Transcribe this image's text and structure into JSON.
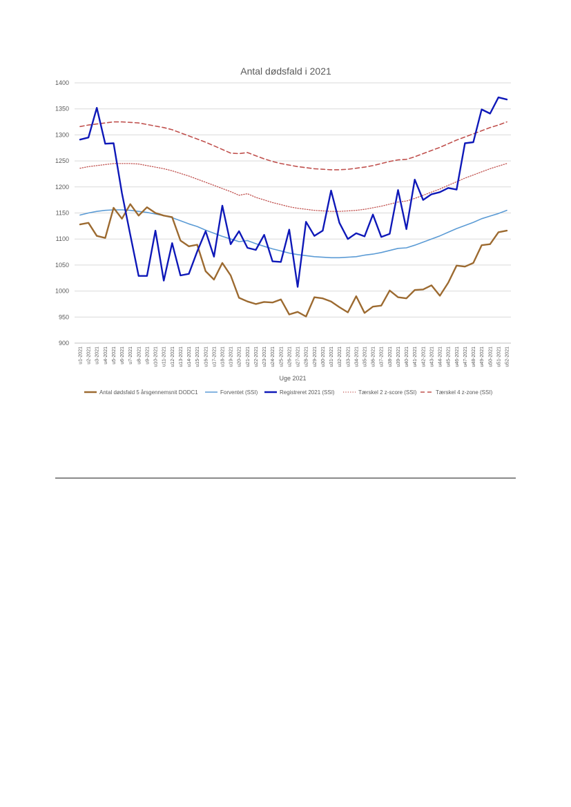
{
  "page": {},
  "chart_data": {
    "type": "line",
    "title": "Antal dødsfald i 2021",
    "xlabel": "Uge 2021",
    "ylabel": "",
    "ylim": [
      900,
      1400
    ],
    "yticks": [
      900,
      950,
      1000,
      1050,
      1100,
      1150,
      1200,
      1250,
      1300,
      1350,
      1400
    ],
    "grid": true,
    "legend_position": "bottom",
    "categories": [
      "u1-2021",
      "u2-2021",
      "u3-2021",
      "u4-2021",
      "u5-2021",
      "u6-2021",
      "u7-2021",
      "u8-2021",
      "u9-2021",
      "u10-2021",
      "u11-2021",
      "u12-2021",
      "u13-2021",
      "u14-2021",
      "u15-2021",
      "u16-2021",
      "u17-2021",
      "u18-2021",
      "u19-2021",
      "u20-2021",
      "u21-2021",
      "u22-2021",
      "u23-2021",
      "u24-2021",
      "u25-2021",
      "u26-2021",
      "u27-2021",
      "u28-2021",
      "u29-2021",
      "u30-2021",
      "u31-2021",
      "u32-2021",
      "u33-2021",
      "u34-2021",
      "u35-2021",
      "u36-2021",
      "u37-2021",
      "u38-2021",
      "u39-2021",
      "u40-2021",
      "u41-2021",
      "u42-2021",
      "u43-2021",
      "u44-2021",
      "u45-2021",
      "u46-2021",
      "u47-2021",
      "u48-2021",
      "u49-2021",
      "u50-2021",
      "u51-2021",
      "u52-2021"
    ],
    "series": [
      {
        "name": "Antal dødsfald 5 årsgennemsnit DODC1",
        "color": "#9c6a30",
        "style": "solid-thick",
        "values": [
          1128,
          1131,
          1106,
          1102,
          1160,
          1139,
          1167,
          1145,
          1161,
          1150,
          1145,
          1142,
          1097,
          1086,
          1089,
          1038,
          1022,
          1054,
          1030,
          987,
          980,
          975,
          979,
          978,
          984,
          955,
          960,
          951,
          988,
          986,
          980,
          969,
          959,
          990,
          958,
          970,
          972,
          1001,
          988,
          986,
          1002,
          1003,
          1011,
          991,
          1016,
          1049,
          1047,
          1054,
          1088,
          1090,
          1113,
          1116
        ]
      },
      {
        "name": "Forventet (SSI)",
        "color": "#5b9bd5",
        "style": "solid",
        "values": [
          1146,
          1150,
          1153,
          1155,
          1156,
          1156,
          1155,
          1153,
          1151,
          1148,
          1145,
          1141,
          1135,
          1129,
          1124,
          1117,
          1111,
          1105,
          1100,
          1095,
          1097,
          1091,
          1086,
          1081,
          1077,
          1073,
          1070,
          1068,
          1066,
          1065,
          1064,
          1064,
          1065,
          1066,
          1069,
          1071,
          1074,
          1078,
          1082,
          1083,
          1088,
          1094,
          1100,
          1106,
          1113,
          1120,
          1126,
          1132,
          1139,
          1144,
          1149,
          1155
        ]
      },
      {
        "name": "Registreret 2021 (SSI)",
        "color": "#0e18b8",
        "style": "solid-thick",
        "values": [
          1291,
          1295,
          1352,
          1283,
          1284,
          1188,
          1108,
          1029,
          1029,
          1116,
          1020,
          1092,
          1030,
          1033,
          1076,
          1115,
          1066,
          1164,
          1090,
          1115,
          1083,
          1079,
          1108,
          1057,
          1056,
          1118,
          1008,
          1133,
          1106,
          1116,
          1193,
          1131,
          1100,
          1111,
          1105,
          1147,
          1104,
          1110,
          1194,
          1119,
          1214,
          1175,
          1186,
          1190,
          1198,
          1195,
          1284,
          1286,
          1349,
          1341,
          1372,
          1368
        ]
      },
      {
        "name": "Tærskel 2 z-score (SSI)",
        "color": "#c0504d",
        "style": "dotted",
        "values": [
          1236,
          1239,
          1241,
          1243,
          1245,
          1245,
          1245,
          1244,
          1241,
          1238,
          1235,
          1231,
          1226,
          1221,
          1215,
          1209,
          1203,
          1197,
          1191,
          1184,
          1187,
          1180,
          1175,
          1170,
          1166,
          1162,
          1159,
          1157,
          1155,
          1154,
          1153,
          1153,
          1154,
          1155,
          1157,
          1160,
          1163,
          1167,
          1171,
          1173,
          1178,
          1184,
          1190,
          1196,
          1203,
          1210,
          1217,
          1223,
          1229,
          1235,
          1240,
          1245
        ]
      },
      {
        "name": "Tærskel 4 z-zone (SSI)",
        "color": "#c0504d",
        "style": "dashed",
        "values": [
          1316,
          1319,
          1321,
          1323,
          1325,
          1325,
          1324,
          1323,
          1320,
          1317,
          1314,
          1310,
          1304,
          1298,
          1292,
          1286,
          1279,
          1272,
          1265,
          1264,
          1266,
          1260,
          1254,
          1249,
          1245,
          1242,
          1239,
          1237,
          1235,
          1234,
          1233,
          1233,
          1234,
          1236,
          1238,
          1241,
          1245,
          1249,
          1252,
          1253,
          1258,
          1264,
          1270,
          1276,
          1283,
          1290,
          1296,
          1302,
          1308,
          1314,
          1319,
          1325
        ]
      }
    ]
  }
}
